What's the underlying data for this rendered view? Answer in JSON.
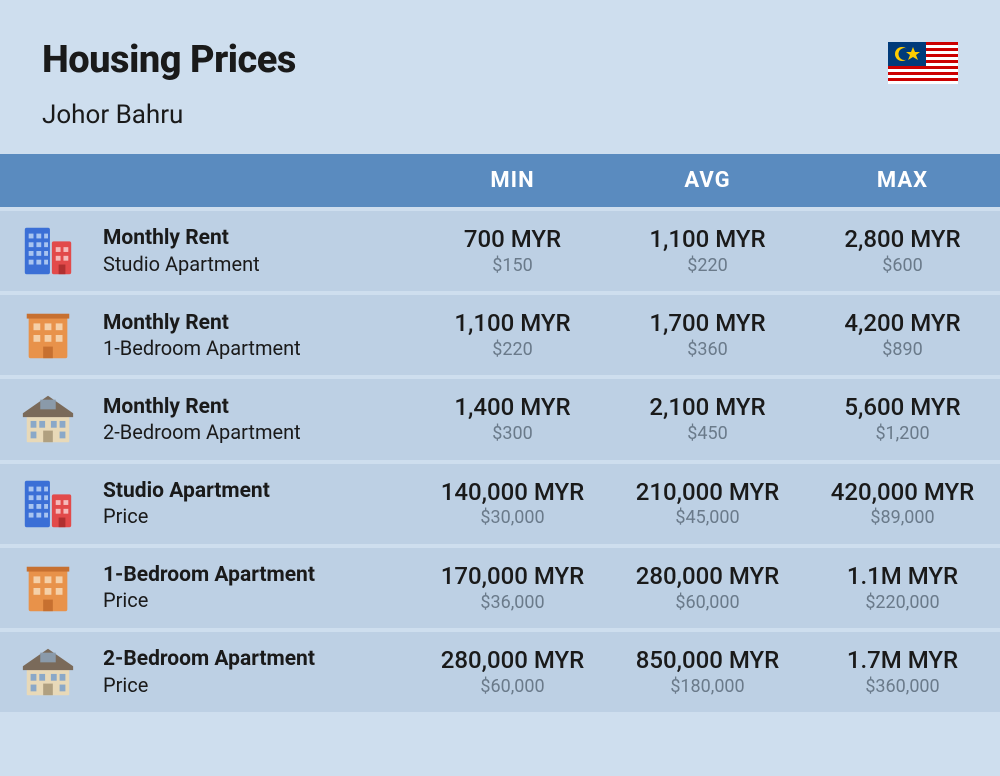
{
  "header": {
    "title": "Housing Prices",
    "subtitle": "Johor Bahru"
  },
  "columns": {
    "min": "MIN",
    "avg": "AVG",
    "max": "MAX"
  },
  "icons": {
    "apartment_tall": "apartment-tall",
    "apartment_mid": "apartment-mid",
    "house": "house"
  },
  "colors": {
    "page_bg": "#cedeee",
    "header_bg": "#5a8bbf",
    "row_bg": "#bdd0e4",
    "text": "#1a1a1a",
    "subtext": "#6a7a8a",
    "header_text": "#ffffff",
    "icon_blue": "#3b6fd6",
    "icon_red": "#e24a4a",
    "icon_orange": "#e8924a",
    "icon_tan": "#e8d9b8",
    "icon_roof": "#7a6a5a"
  },
  "rows": [
    {
      "icon": "apartment_tall",
      "label_main": "Monthly Rent",
      "label_sub": "Studio Apartment",
      "min_main": "700 MYR",
      "min_sub": "$150",
      "avg_main": "1,100 MYR",
      "avg_sub": "$220",
      "max_main": "2,800 MYR",
      "max_sub": "$600"
    },
    {
      "icon": "apartment_mid",
      "label_main": "Monthly Rent",
      "label_sub": "1-Bedroom Apartment",
      "min_main": "1,100 MYR",
      "min_sub": "$220",
      "avg_main": "1,700 MYR",
      "avg_sub": "$360",
      "max_main": "4,200 MYR",
      "max_sub": "$890"
    },
    {
      "icon": "house",
      "label_main": "Monthly Rent",
      "label_sub": "2-Bedroom Apartment",
      "min_main": "1,400 MYR",
      "min_sub": "$300",
      "avg_main": "2,100 MYR",
      "avg_sub": "$450",
      "max_main": "5,600 MYR",
      "max_sub": "$1,200"
    },
    {
      "icon": "apartment_tall",
      "label_main": "Studio Apartment",
      "label_sub": "Price",
      "min_main": "140,000 MYR",
      "min_sub": "$30,000",
      "avg_main": "210,000 MYR",
      "avg_sub": "$45,000",
      "max_main": "420,000 MYR",
      "max_sub": "$89,000"
    },
    {
      "icon": "apartment_mid",
      "label_main": "1-Bedroom Apartment",
      "label_sub": "Price",
      "min_main": "170,000 MYR",
      "min_sub": "$36,000",
      "avg_main": "280,000 MYR",
      "avg_sub": "$60,000",
      "max_main": "1.1M MYR",
      "max_sub": "$220,000"
    },
    {
      "icon": "house",
      "label_main": "2-Bedroom Apartment",
      "label_sub": "Price",
      "min_main": "280,000 MYR",
      "min_sub": "$60,000",
      "avg_main": "850,000 MYR",
      "avg_sub": "$180,000",
      "max_main": "1.7M MYR",
      "max_sub": "$360,000"
    }
  ]
}
